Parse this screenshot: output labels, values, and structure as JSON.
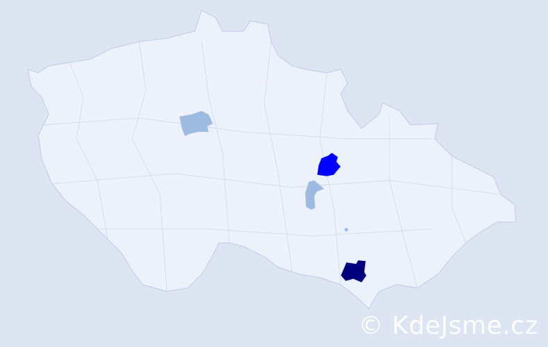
{
  "watermark": "© KdeJsme.cz",
  "colors": {
    "background": "#dce5f1",
    "land": "#edf1fa",
    "border": "#c5d1ea",
    "level_low": "#9dbbe0",
    "level_mid": "#0000ff",
    "level_high": "#00007f"
  },
  "highlighted_regions": [
    {
      "level": "low"
    },
    {
      "level": "mid"
    },
    {
      "level": "low"
    },
    {
      "level": "high"
    },
    {
      "level": "low"
    }
  ]
}
